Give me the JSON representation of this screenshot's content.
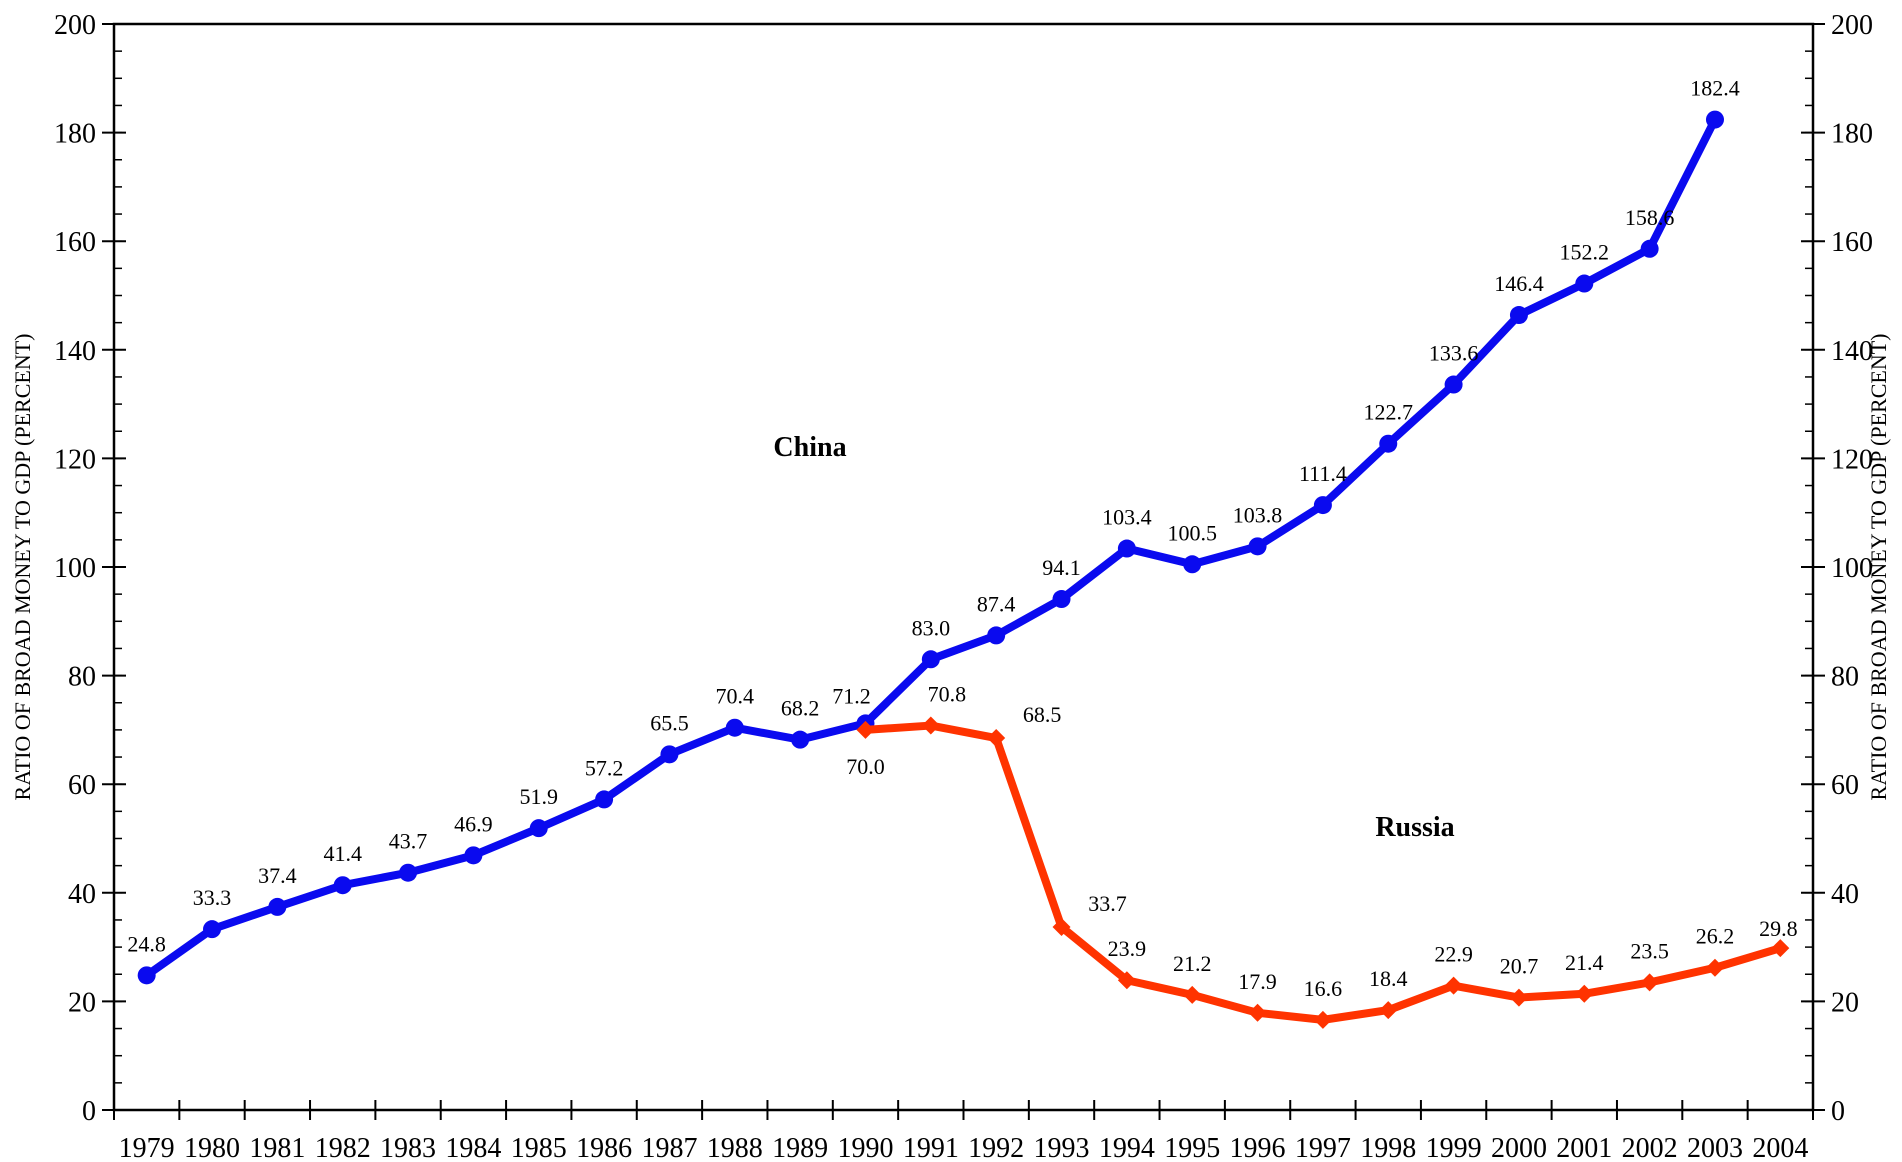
{
  "chart_data": {
    "type": "line",
    "title": "",
    "xlabel": "",
    "ylabel_left": "RATIO OF BROAD MONEY TO GDP (PERCENT)",
    "ylabel_right": "RATIO OF BROAD MONEY TO GDP (PERCENT)",
    "ylim": [
      0,
      200
    ],
    "y_major_ticks": [
      0,
      20,
      40,
      60,
      80,
      100,
      120,
      140,
      160,
      180,
      200
    ],
    "y_minor_step": 5,
    "grid": false,
    "categories": [
      "1979",
      "1980",
      "1981",
      "1982",
      "1983",
      "1984",
      "1985",
      "1986",
      "1987",
      "1988",
      "1989",
      "1990",
      "1991",
      "1992",
      "1993",
      "1994",
      "1995",
      "1996",
      "1997",
      "1998",
      "1999",
      "2000",
      "2001",
      "2002",
      "2003",
      "2004"
    ],
    "series": [
      {
        "name": "China",
        "color": "#0a0aef",
        "marker": "circle",
        "x": [
          "1979",
          "1980",
          "1981",
          "1982",
          "1983",
          "1984",
          "1985",
          "1986",
          "1987",
          "1988",
          "1989",
          "1990",
          "1991",
          "1992",
          "1993",
          "1994",
          "1995",
          "1996",
          "1997",
          "1998",
          "1999",
          "2000",
          "2001",
          "2002",
          "2003"
        ],
        "values": [
          24.8,
          33.3,
          37.4,
          41.4,
          43.7,
          46.9,
          51.9,
          57.2,
          65.5,
          70.4,
          68.2,
          71.2,
          83.0,
          87.4,
          94.1,
          103.4,
          100.5,
          103.8,
          111.4,
          122.7,
          133.6,
          146.4,
          152.2,
          158.6,
          182.4
        ],
        "labels": [
          "24.8",
          "33.3",
          "37.4",
          "41.4",
          "43.7",
          "46.9",
          "51.9",
          "57.2",
          "65.5",
          "70.4",
          "68.2",
          "71.2",
          "83.0",
          "87.4",
          "94.1",
          "103.4",
          "100.5",
          "103.8",
          "111.4",
          "122.7",
          "133.6",
          "146.4",
          "152.2",
          "158.6",
          "182.4"
        ]
      },
      {
        "name": "Russia",
        "color": "#ff3300",
        "marker": "diamond",
        "x": [
          "1990",
          "1991",
          "1992",
          "1993",
          "1994",
          "1995",
          "1996",
          "1997",
          "1998",
          "1999",
          "2000",
          "2001",
          "2002",
          "2003",
          "2004"
        ],
        "values": [
          70.0,
          70.8,
          68.5,
          33.7,
          23.9,
          21.2,
          17.9,
          16.6,
          18.4,
          22.9,
          20.7,
          21.4,
          23.5,
          26.2,
          29.8
        ],
        "labels": [
          "70.0",
          "70.8",
          "68.5",
          "33.7",
          "23.9",
          "21.2",
          "17.9",
          "16.6",
          "18.4",
          "22.9",
          "20.7",
          "21.4",
          "23.5",
          "26.2",
          "29.8"
        ]
      }
    ],
    "annotations": {
      "china_label": "China",
      "russia_label": "Russia"
    }
  }
}
